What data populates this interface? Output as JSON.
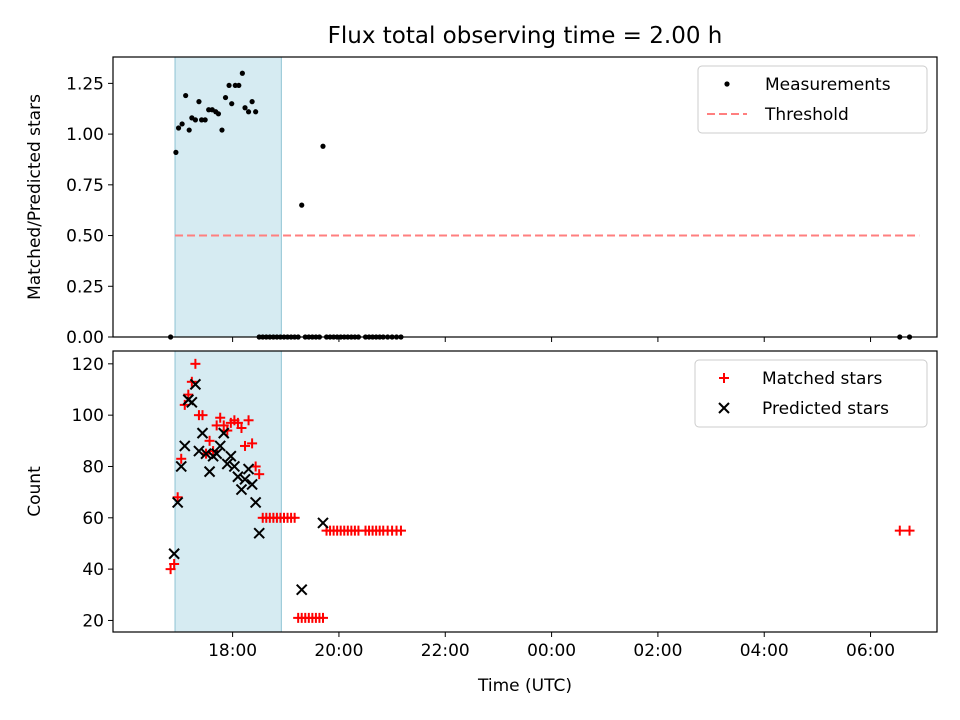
{
  "title": "Flux total observing time = 2.00 h",
  "chart_data": [
    {
      "type": "scatter",
      "panel": "top",
      "ylabel": "Matched/Predicted stars",
      "xlabel": "",
      "ylim": [
        0,
        1.38
      ],
      "yticks": [
        "0.00",
        "0.25",
        "0.50",
        "0.75",
        "1.00",
        "1.25"
      ],
      "ytick_values": [
        0,
        0.25,
        0.5,
        0.75,
        1.0,
        1.25
      ],
      "highlight_span": [
        "16:55",
        "18:55"
      ],
      "legend": {
        "location": "top-right",
        "entries": [
          "Measurements",
          "Threshold"
        ]
      },
      "threshold": {
        "name": "Threshold",
        "value": 0.5,
        "x_range": [
          "16:55",
          "06:55"
        ],
        "color": "#ff7f7f",
        "style": "dashed"
      },
      "series": [
        {
          "name": "Measurements",
          "color": "#000000",
          "points": [
            [
              "16:50",
              0.0
            ],
            [
              "16:56",
              0.91
            ],
            [
              "16:59",
              1.03
            ],
            [
              "17:03",
              1.05
            ],
            [
              "17:07",
              1.19
            ],
            [
              "17:11",
              1.02
            ],
            [
              "17:14",
              1.08
            ],
            [
              "17:18",
              1.07
            ],
            [
              "17:22",
              1.16
            ],
            [
              "17:25",
              1.07
            ],
            [
              "17:29",
              1.07
            ],
            [
              "17:33",
              1.12
            ],
            [
              "17:37",
              1.12
            ],
            [
              "17:41",
              1.11
            ],
            [
              "17:44",
              1.1
            ],
            [
              "17:48",
              1.02
            ],
            [
              "17:52",
              1.18
            ],
            [
              "17:56",
              1.24
            ],
            [
              "17:59",
              1.15
            ],
            [
              "18:03",
              1.24
            ],
            [
              "18:07",
              1.24
            ],
            [
              "18:11",
              1.3
            ],
            [
              "18:14",
              1.13
            ],
            [
              "18:18",
              1.11
            ],
            [
              "18:22",
              1.16
            ],
            [
              "18:26",
              1.11
            ],
            [
              "18:30",
              0.0
            ],
            [
              "18:34",
              0.0
            ],
            [
              "18:38",
              0.0
            ],
            [
              "18:42",
              0.0
            ],
            [
              "18:46",
              0.0
            ],
            [
              "18:50",
              0.0
            ],
            [
              "18:54",
              0.0
            ],
            [
              "18:58",
              0.0
            ],
            [
              "19:02",
              0.0
            ],
            [
              "19:06",
              0.0
            ],
            [
              "19:10",
              0.0
            ],
            [
              "19:14",
              0.0
            ],
            [
              "19:18",
              0.65
            ],
            [
              "19:22",
              0.0
            ],
            [
              "19:26",
              0.0
            ],
            [
              "19:30",
              0.0
            ],
            [
              "19:34",
              0.0
            ],
            [
              "19:38",
              0.0
            ],
            [
              "19:42",
              0.94
            ],
            [
              "19:46",
              0.0
            ],
            [
              "19:50",
              0.0
            ],
            [
              "19:54",
              0.0
            ],
            [
              "19:58",
              0.0
            ],
            [
              "20:02",
              0.0
            ],
            [
              "20:06",
              0.0
            ],
            [
              "20:10",
              0.0
            ],
            [
              "20:14",
              0.0
            ],
            [
              "20:18",
              0.0
            ],
            [
              "20:22",
              0.0
            ],
            [
              "20:30",
              0.0
            ],
            [
              "20:34",
              0.0
            ],
            [
              "20:38",
              0.0
            ],
            [
              "20:42",
              0.0
            ],
            [
              "20:46",
              0.0
            ],
            [
              "20:50",
              0.0
            ],
            [
              "20:55",
              0.0
            ],
            [
              "21:00",
              0.0
            ],
            [
              "21:05",
              0.0
            ],
            [
              "21:10",
              0.0
            ],
            [
              "06:33",
              0.0
            ],
            [
              "06:44",
              0.0
            ]
          ]
        }
      ]
    },
    {
      "type": "scatter",
      "panel": "bottom",
      "ylabel": "Count",
      "xlabel": "Time (UTC)",
      "ylim": [
        15.5,
        125
      ],
      "yticks": [
        "20",
        "40",
        "60",
        "80",
        "100",
        "120"
      ],
      "ytick_values": [
        20,
        40,
        60,
        80,
        100,
        120
      ],
      "xticks": [
        "18:00",
        "20:00",
        "22:00",
        "00:00",
        "02:00",
        "04:00",
        "06:00"
      ],
      "xlim": [
        "15:45",
        "07:15"
      ],
      "highlight_span": [
        "16:55",
        "18:55"
      ],
      "legend": {
        "location": "top-right",
        "entries": [
          "Matched stars",
          "Predicted stars"
        ]
      },
      "series": [
        {
          "name": "Matched stars",
          "marker": "plus",
          "color": "#ff0000",
          "points": [
            [
              "16:50",
              40
            ],
            [
              "16:54",
              42
            ],
            [
              "16:58",
              68
            ],
            [
              "17:02",
              83
            ],
            [
              "17:06",
              104
            ],
            [
              "17:10",
              108
            ],
            [
              "17:14",
              113
            ],
            [
              "17:18",
              120
            ],
            [
              "17:22",
              100
            ],
            [
              "17:26",
              100
            ],
            [
              "17:30",
              85
            ],
            [
              "17:34",
              90
            ],
            [
              "17:38",
              86
            ],
            [
              "17:42",
              96
            ],
            [
              "17:46",
              99
            ],
            [
              "17:50",
              96
            ],
            [
              "17:54",
              94
            ],
            [
              "17:58",
              97
            ],
            [
              "18:02",
              98
            ],
            [
              "18:06",
              97
            ],
            [
              "18:10",
              95
            ],
            [
              "18:14",
              88
            ],
            [
              "18:18",
              98
            ],
            [
              "18:22",
              89
            ],
            [
              "18:26",
              80
            ],
            [
              "18:30",
              77
            ],
            [
              "18:34",
              60
            ],
            [
              "18:38",
              60
            ],
            [
              "18:42",
              60
            ],
            [
              "18:46",
              60
            ],
            [
              "18:50",
              60
            ],
            [
              "18:54",
              60
            ],
            [
              "18:58",
              60
            ],
            [
              "19:02",
              60
            ],
            [
              "19:06",
              60
            ],
            [
              "19:10",
              60
            ],
            [
              "19:14",
              21
            ],
            [
              "19:18",
              21
            ],
            [
              "19:22",
              21
            ],
            [
              "19:26",
              21
            ],
            [
              "19:30",
              21
            ],
            [
              "19:34",
              21
            ],
            [
              "19:38",
              21
            ],
            [
              "19:42",
              21
            ],
            [
              "19:46",
              55
            ],
            [
              "19:50",
              55
            ],
            [
              "19:54",
              55
            ],
            [
              "19:58",
              55
            ],
            [
              "20:02",
              55
            ],
            [
              "20:06",
              55
            ],
            [
              "20:10",
              55
            ],
            [
              "20:14",
              55
            ],
            [
              "20:18",
              55
            ],
            [
              "20:22",
              55
            ],
            [
              "20:30",
              55
            ],
            [
              "20:34",
              55
            ],
            [
              "20:38",
              55
            ],
            [
              "20:42",
              55
            ],
            [
              "20:46",
              55
            ],
            [
              "20:50",
              55
            ],
            [
              "20:55",
              55
            ],
            [
              "21:00",
              55
            ],
            [
              "21:05",
              55
            ],
            [
              "21:10",
              55
            ],
            [
              "06:33",
              55
            ],
            [
              "06:44",
              55
            ]
          ]
        },
        {
          "name": "Predicted stars",
          "marker": "x",
          "color": "#000000",
          "points": [
            [
              "16:54",
              46
            ],
            [
              "16:58",
              66
            ],
            [
              "17:02",
              80
            ],
            [
              "17:06",
              88
            ],
            [
              "17:10",
              106
            ],
            [
              "17:14",
              105
            ],
            [
              "17:18",
              112
            ],
            [
              "17:22",
              86
            ],
            [
              "17:26",
              93
            ],
            [
              "17:30",
              85
            ],
            [
              "17:34",
              78
            ],
            [
              "17:38",
              84
            ],
            [
              "17:42",
              85
            ],
            [
              "17:46",
              88
            ],
            [
              "17:50",
              93
            ],
            [
              "17:54",
              81
            ],
            [
              "17:58",
              84
            ],
            [
              "18:02",
              80
            ],
            [
              "18:06",
              76
            ],
            [
              "18:10",
              71
            ],
            [
              "18:14",
              75
            ],
            [
              "18:18",
              79
            ],
            [
              "18:22",
              73
            ],
            [
              "18:26",
              66
            ],
            [
              "18:30",
              54
            ],
            [
              "19:18",
              32
            ],
            [
              "19:42",
              58
            ]
          ]
        }
      ]
    }
  ]
}
